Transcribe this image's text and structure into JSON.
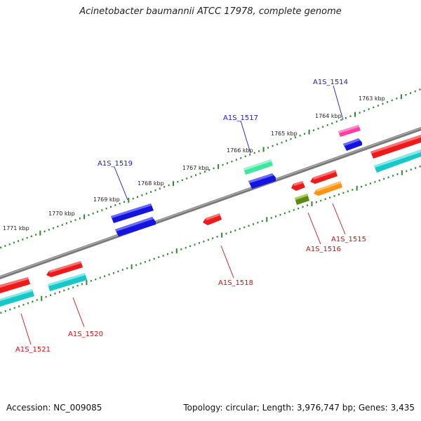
{
  "title": "Acinetobacter baumannii ATCC 17978, complete genome",
  "footer": {
    "accession": "Accession: NC_009085",
    "summary": "Topology: circular; Length: 3,976,747 bp; Genes: 3,435"
  },
  "colors": {
    "label_forward": "#1a1acc",
    "label_reverse": "#d01010",
    "tick": "#2f8a2f",
    "backbone": "#7a7a7a"
  },
  "scale_labels": [
    "1771 kbp",
    "1770 kbp",
    "1769 kbp",
    "1768 kbp",
    "1767 kbp",
    "1766 kbp",
    "1765 kbp",
    "1764 kbp",
    "1763 kbp"
  ],
  "gene_labels": [
    {
      "text": "A1S_1514",
      "strand": "forward"
    },
    {
      "text": "A1S_1515",
      "strand": "reverse"
    },
    {
      "text": "A1S_1516",
      "strand": "reverse"
    },
    {
      "text": "A1S_1517",
      "strand": "forward"
    },
    {
      "text": "A1S_1518",
      "strand": "reverse"
    },
    {
      "text": "A1S_1519",
      "strand": "forward"
    },
    {
      "text": "A1S_1520",
      "strand": "reverse"
    },
    {
      "text": "A1S_1521",
      "strand": "reverse"
    }
  ]
}
